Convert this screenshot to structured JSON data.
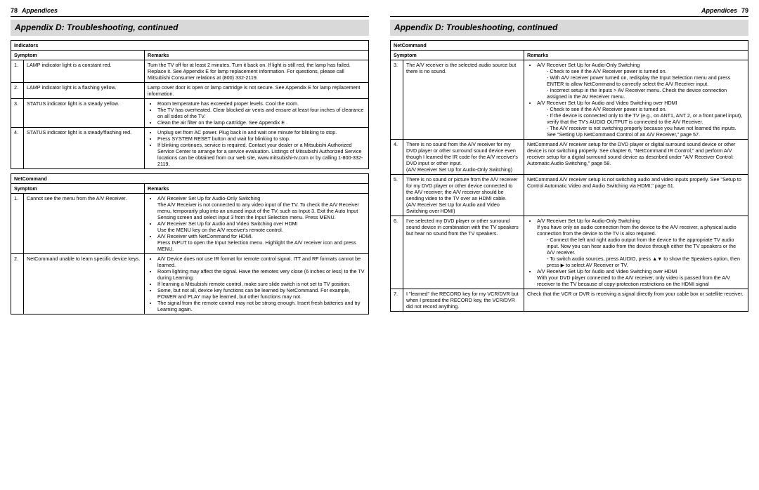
{
  "left": {
    "pageNum": "78",
    "headerTitle": "Appendices",
    "sectionTitle": "Appendix D:  Troubleshooting, continued",
    "indicators": {
      "heading": "Indicators",
      "colSymptom": "Symptom",
      "colRemarks": "Remarks",
      "rows": [
        {
          "n": "1.",
          "symptom": "LAMP indicator light is a constant red.",
          "remarks": "Turn the TV off for at least 2 minutes.  Turn it back on.  If light is still red, the lamp has failed. Replace it.  See Appendix E for lamp replacement information.  For questions, please call Mitsubishi Consumer relations at (800) 332-2119."
        },
        {
          "n": "2.",
          "symptom": "LAMP indicator light is a flashing yellow.",
          "remarks": "Lamp cover door is open or lamp cartridge is not secure.  See Appendix E for lamp replacement information."
        },
        {
          "n": "3.",
          "symptom": "STATUS indicator light is a steady yellow.",
          "bullets": [
            "Room temperature has exceeded proper levels.  Cool the room.",
            "The TV has overheated.  Clear blocked air vents and ensure at least four inches of clearance on all sides of the TV.",
            "Clean the air filter on the lamp cartridge.  See Appendix E ."
          ]
        },
        {
          "n": "4.",
          "symptom": "STATUS indicator light is a steady/flashing red.",
          "bullets": [
            "Unplug set from AC power.  Plug back in and wait one minute for blinking to stop.",
            "Press SYSTEM RESET button and wait for blinking to stop.",
            "If blinking continues, service is required.  Contact your dealer or a Mitsubishi Authorized Service Center to arrange for a service evaluation.  Listings of Mitsubishi Authorized Service locations can be obtained from our web site,  www.mitsubishi-tv.com or by calling 1-800-332-2119."
          ]
        }
      ]
    },
    "netcommand": {
      "heading": "NetCommand",
      "colSymptom": "Symptom",
      "colRemarks": "Remarks",
      "rows": [
        {
          "n": "1.",
          "symptom": "Cannot see the menu from the A/V Receiver.",
          "bullets": [
            "A/V Receiver Set Up for Audio-Only Switching\nThe A/V Receiver is not connected to any video input of the TV.  To check the A/V Receiver menu, temporarily plug into an unused input of the TV, such as Input 3.  Exit the Auto Input Sensing screen and select Input 3 from the Input Selection menu. Press MENU.",
            "A/V Receiver Set Up for Audio and Video Switching over HDMI\nUse the MENU key on the A/V receiver's remote control.",
            "A/V Receiver with NetCommand for HDMI.\nPress INPUT to open the Input Selection menu.  Highlight the A/V receiver icon and press MENU."
          ]
        },
        {
          "n": "2.",
          "symptom": "NetCommand unable to learn specific device keys.",
          "bullets": [
            "A/V Device does not use IR format for remote control signal. ITT and RF formats cannot be learned.",
            "Room lighting may affect the signal.  Have the remotes very close (6 inches or less) to the TV during Learning.",
            "If learning a Mitsubishi remote control, make sure slide switch is not set to TV position.",
            "Some, but not all, device key functions can be learned by NetCommand.  For example, POWER and PLAY may be learned, but other functions may not.",
            "The signal from the remote control may not be strong enough.  Insert fresh batteries and try Learning again."
          ]
        }
      ]
    }
  },
  "right": {
    "pageNum": "79",
    "headerTitle": "Appendices",
    "sectionTitle": "Appendix D:  Troubleshooting, continued",
    "netcommand": {
      "heading": "NetCommand",
      "colSymptom": "Symptom",
      "colRemarks": "Remarks",
      "rows": [
        {
          "n": "3.",
          "symptom": "The A/V receiver is the selected audio source but there is no sound.",
          "remarksHtml": "<ul><li>A/V Receiver Set Up for Audio-Only Switching<ul class='sub'><li>Check to see if the A/V Receiver power is turned on.</li><li>With A/V receiver power turned on, redisplay the Input Selection menu and press ENTER to allow NetCommand to correctly select the A/V Receiver input.</li><li>Incorrect setup in the Inputs &gt; AV Receiver menu.  Check the device connection assigned in the AV Receiver menu.</li></ul></li><li>A/V Receiver Set Up for Audio and Video Switching over HDMI<ul class='sub'><li>Check to see if the A/V Receiver power is turned on.</li><li>If the device is connected only to the TV (e.g., on ANT1, ANT 2, or a front panel input), verify that the TV's AUDIO OUTPUT is connected to the A/V Receiver.</li><li>The A/V receiver is not switching properly because you  have not learned the inputs.  See \"Setting Up NetCommand Control of an A/V Receiver,\" page 57.</li></ul></li></ul>"
        },
        {
          "n": "4.",
          "symptom": "There is no sound from the A/V receiver for my DVD player or other surround sound device even though I learned the IR code for the A/V receiver's DVD input or other input.\n(A/V Receiver Set Up for Audio-Only Switching)",
          "remarks": "NetCommand A/V receiver setup for the DVD player or digital surround sound device or other device is not switching properly.  See chapter 6, \"NetCommand IR Control,\" and perform A/V receiver setup for a digital surround sound device as described under \"A/V Receiver Control:  Automatic Audio Switching,\" page 58."
        },
        {
          "n": "5.",
          "symptom": "There is no sound or picture from the A/V receiver for my DVD player or other device connected to the A/V receiver; the A/V receiver should be sending video to the TV over an HDMI cable.\n(A/V Receiver Set Up for Audio and Video Switching over HDMI)",
          "remarks": "NetCommand A/V receiver setup is not switching audio and video inputs properly.   See \"Setup to Control Automatic Video and Audio Switching via HDMI,\" page 61."
        },
        {
          "n": "6.",
          "symptom": "I've selected my DVD player or other surround sound device in combination with the TV speakers but hear no sound from the TV speakers.",
          "remarksHtml": "<ul><li>A/V Receiver Set Up for Audio-Only Switching<br>If you have only an audio connection from the device to the A/V receiver, a physical audio connection from the device to the TV is also required.<ul class='sub'><li>Connect the left and right audio output from the device to the appropriate TV audio input.  Now you can hear audio from the device through either the TV speakers or the A/V receiver.</li><li>To switch audio sources, press AUDIO, press ▲▼ to show the Speakers option, then press ▶ to select AV Receiver or TV.</li></ul></li><li>A/V Receiver Set Up for Audio and Video Switching over HDMI<br>With your DVD player connected to the A/V receiver, only video is passed from the A/V receiver to the TV because of copy-protection restrictions on the HDMI signal</li></ul>"
        },
        {
          "n": "7.",
          "symptom": "I \"learned\" the RECORD key for my VCR/DVR but when I pressed the RECORD key, the VCR/DVR did not record anything.",
          "remarks": "Check that the VCR or DVR is receiving a signal directly from your cable box or satellite receiver."
        }
      ]
    }
  }
}
